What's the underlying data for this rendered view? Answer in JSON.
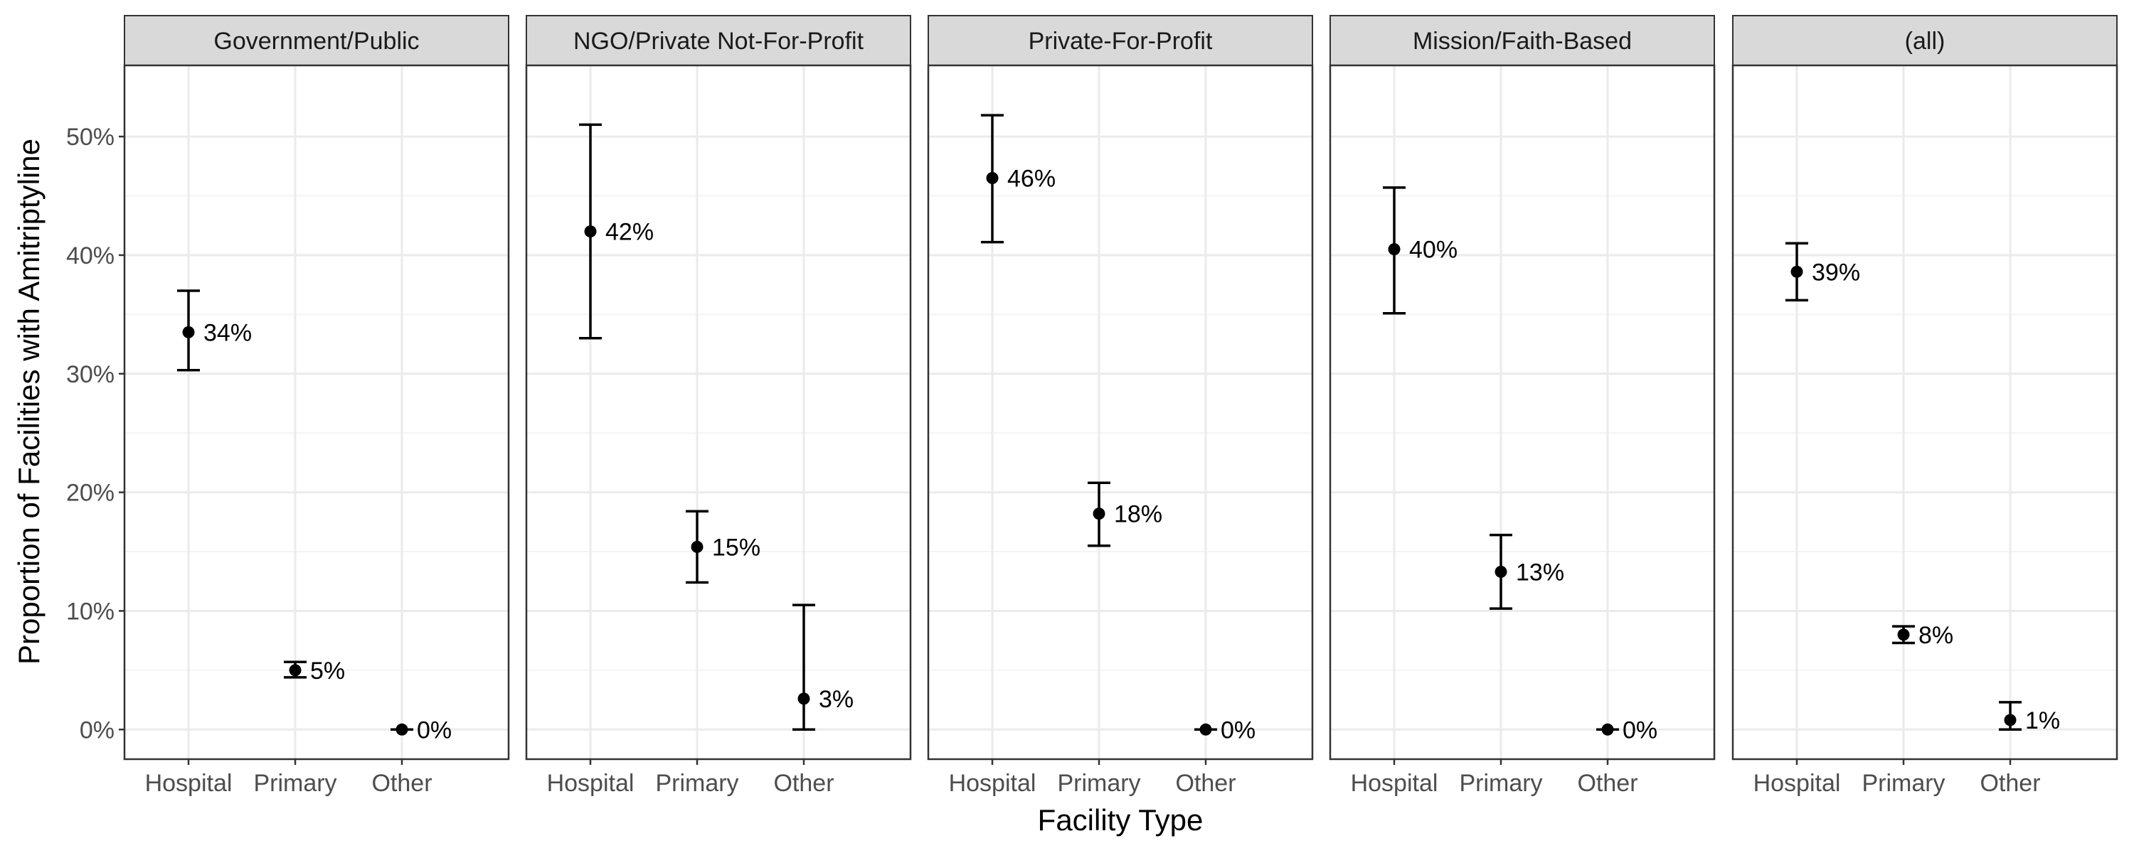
{
  "chart_data": {
    "type": "scatter",
    "subtype": "faceted point estimate with error bars",
    "ylabel": "Proportion of Facilities with Amitriptyline",
    "xlabel": "Facility Type",
    "categories": [
      "Hospital",
      "Primary",
      "Other"
    ],
    "ylim": [
      -0.025,
      0.56
    ],
    "y_ticks": [
      0,
      0.1,
      0.2,
      0.3,
      0.4,
      0.5
    ],
    "y_tick_labels": [
      "0%",
      "10%",
      "20%",
      "30%",
      "40%",
      "50%"
    ],
    "grid": true,
    "facets": [
      {
        "title": "Government/Public",
        "points": [
          {
            "category": "Hospital",
            "value": 0.335,
            "low": 0.303,
            "high": 0.37,
            "label": "34%"
          },
          {
            "category": "Primary",
            "value": 0.05,
            "low": 0.044,
            "high": 0.057,
            "label": "5%"
          },
          {
            "category": "Other",
            "value": 0.0,
            "low": 0.0,
            "high": 0.0,
            "label": "0%"
          }
        ]
      },
      {
        "title": "NGO/Private Not-For-Profit",
        "points": [
          {
            "category": "Hospital",
            "value": 0.42,
            "low": 0.33,
            "high": 0.51,
            "label": "42%"
          },
          {
            "category": "Primary",
            "value": 0.154,
            "low": 0.124,
            "high": 0.184,
            "label": "15%"
          },
          {
            "category": "Other",
            "value": 0.026,
            "low": 0.0,
            "high": 0.105,
            "label": "3%"
          }
        ]
      },
      {
        "title": "Private-For-Profit",
        "points": [
          {
            "category": "Hospital",
            "value": 0.465,
            "low": 0.411,
            "high": 0.518,
            "label": "46%"
          },
          {
            "category": "Primary",
            "value": 0.182,
            "low": 0.155,
            "high": 0.208,
            "label": "18%"
          },
          {
            "category": "Other",
            "value": 0.0,
            "low": 0.0,
            "high": 0.0,
            "label": "0%"
          }
        ]
      },
      {
        "title": "Mission/Faith-Based",
        "points": [
          {
            "category": "Hospital",
            "value": 0.405,
            "low": 0.351,
            "high": 0.457,
            "label": "40%"
          },
          {
            "category": "Primary",
            "value": 0.133,
            "low": 0.102,
            "high": 0.164,
            "label": "13%"
          },
          {
            "category": "Other",
            "value": 0.0,
            "low": 0.0,
            "high": 0.0,
            "label": "0%"
          }
        ]
      },
      {
        "title": "(all)",
        "points": [
          {
            "category": "Hospital",
            "value": 0.386,
            "low": 0.362,
            "high": 0.41,
            "label": "39%"
          },
          {
            "category": "Primary",
            "value": 0.08,
            "low": 0.073,
            "high": 0.087,
            "label": "8%"
          },
          {
            "category": "Other",
            "value": 0.008,
            "low": 0.0,
            "high": 0.023,
            "label": "1%"
          }
        ]
      }
    ]
  },
  "colors": {
    "point": "#000000",
    "errorbar": "#000000",
    "panel_border": "#333333",
    "strip_fill": "#d9d9d9",
    "grid_major": "#ebebeb",
    "grid_minor": "#f4f4f4",
    "tick_label": "#4d4d4d"
  }
}
